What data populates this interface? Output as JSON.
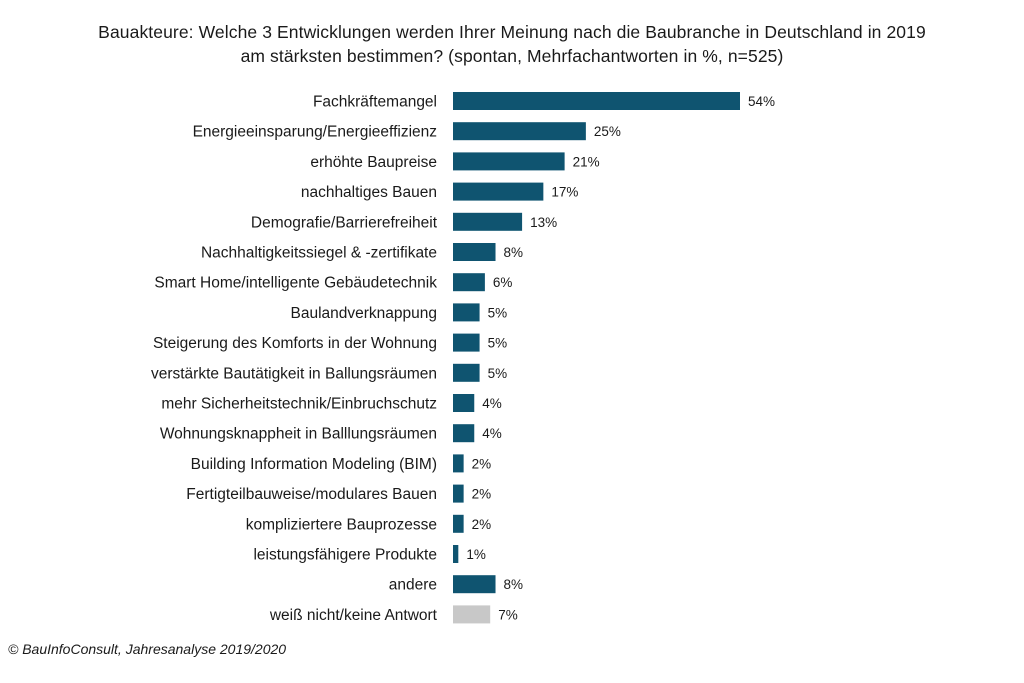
{
  "chart_data": {
    "type": "bar",
    "orientation": "horizontal",
    "title": "Bauakteure: Welche 3 Entwicklungen werden Ihrer Meinung nach die Baubranche in Deutschland in 2019 am stärksten bestimmen? (spontan, Mehrfachantworten in %, n=525)",
    "title_lines": [
      "Bauakteure: Welche 3 Entwicklungen  werden Ihrer Meinung nach die Baubranche in Deutschland in 2019",
      "am stärksten bestimmen?  (spontan, Mehrfachantworten  in %, n=525)"
    ],
    "categories": [
      "Fachkräftemangel",
      "Energieeinsparung/Energieeffizienz",
      "erhöhte Baupreise",
      "nachhaltiges Bauen",
      "Demografie/Barrierefreiheit",
      "Nachhaltigkeitssiegel & -zertifikate",
      "Smart Home/intelligente Gebäudetechnik",
      "Baulandverknappung",
      "Steigerung des Komforts in der Wohnung",
      "verstärkte Bautätigkeit in Ballungsräumen",
      "mehr Sicherheitstechnik/Einbruchschutz",
      "Wohnungsknappheit in Balllungsräumen",
      "Building Information Modeling (BIM)",
      "Fertigteilbauweise/modulares Bauen",
      "kompliziertere Bauprozesse",
      "leistungsfähigere Produkte",
      "andere",
      "weiß nicht/keine Antwort"
    ],
    "values": [
      54,
      25,
      21,
      17,
      13,
      8,
      6,
      5,
      5,
      5,
      4,
      4,
      2,
      2,
      2,
      1,
      8,
      7
    ],
    "value_labels": [
      "54%",
      "25%",
      "21%",
      "17%",
      "13%",
      "8%",
      "6%",
      "5%",
      "5%",
      "5%",
      "4%",
      "4%",
      "2%",
      "2%",
      "2%",
      "1%",
      "8%",
      "7%"
    ],
    "bar_colors": [
      "#0f5470",
      "#0f5470",
      "#0f5470",
      "#0f5470",
      "#0f5470",
      "#0f5470",
      "#0f5470",
      "#0f5470",
      "#0f5470",
      "#0f5470",
      "#0f5470",
      "#0f5470",
      "#0f5470",
      "#0f5470",
      "#0f5470",
      "#0f5470",
      "#0f5470",
      "#c8c8c8"
    ],
    "unit": "%",
    "xlabel": "",
    "ylabel": "",
    "xlim": [
      0,
      54
    ],
    "grid": false,
    "legend": "none"
  },
  "source": "© BauInfoConsult, Jahresanalyse 2019/2020"
}
